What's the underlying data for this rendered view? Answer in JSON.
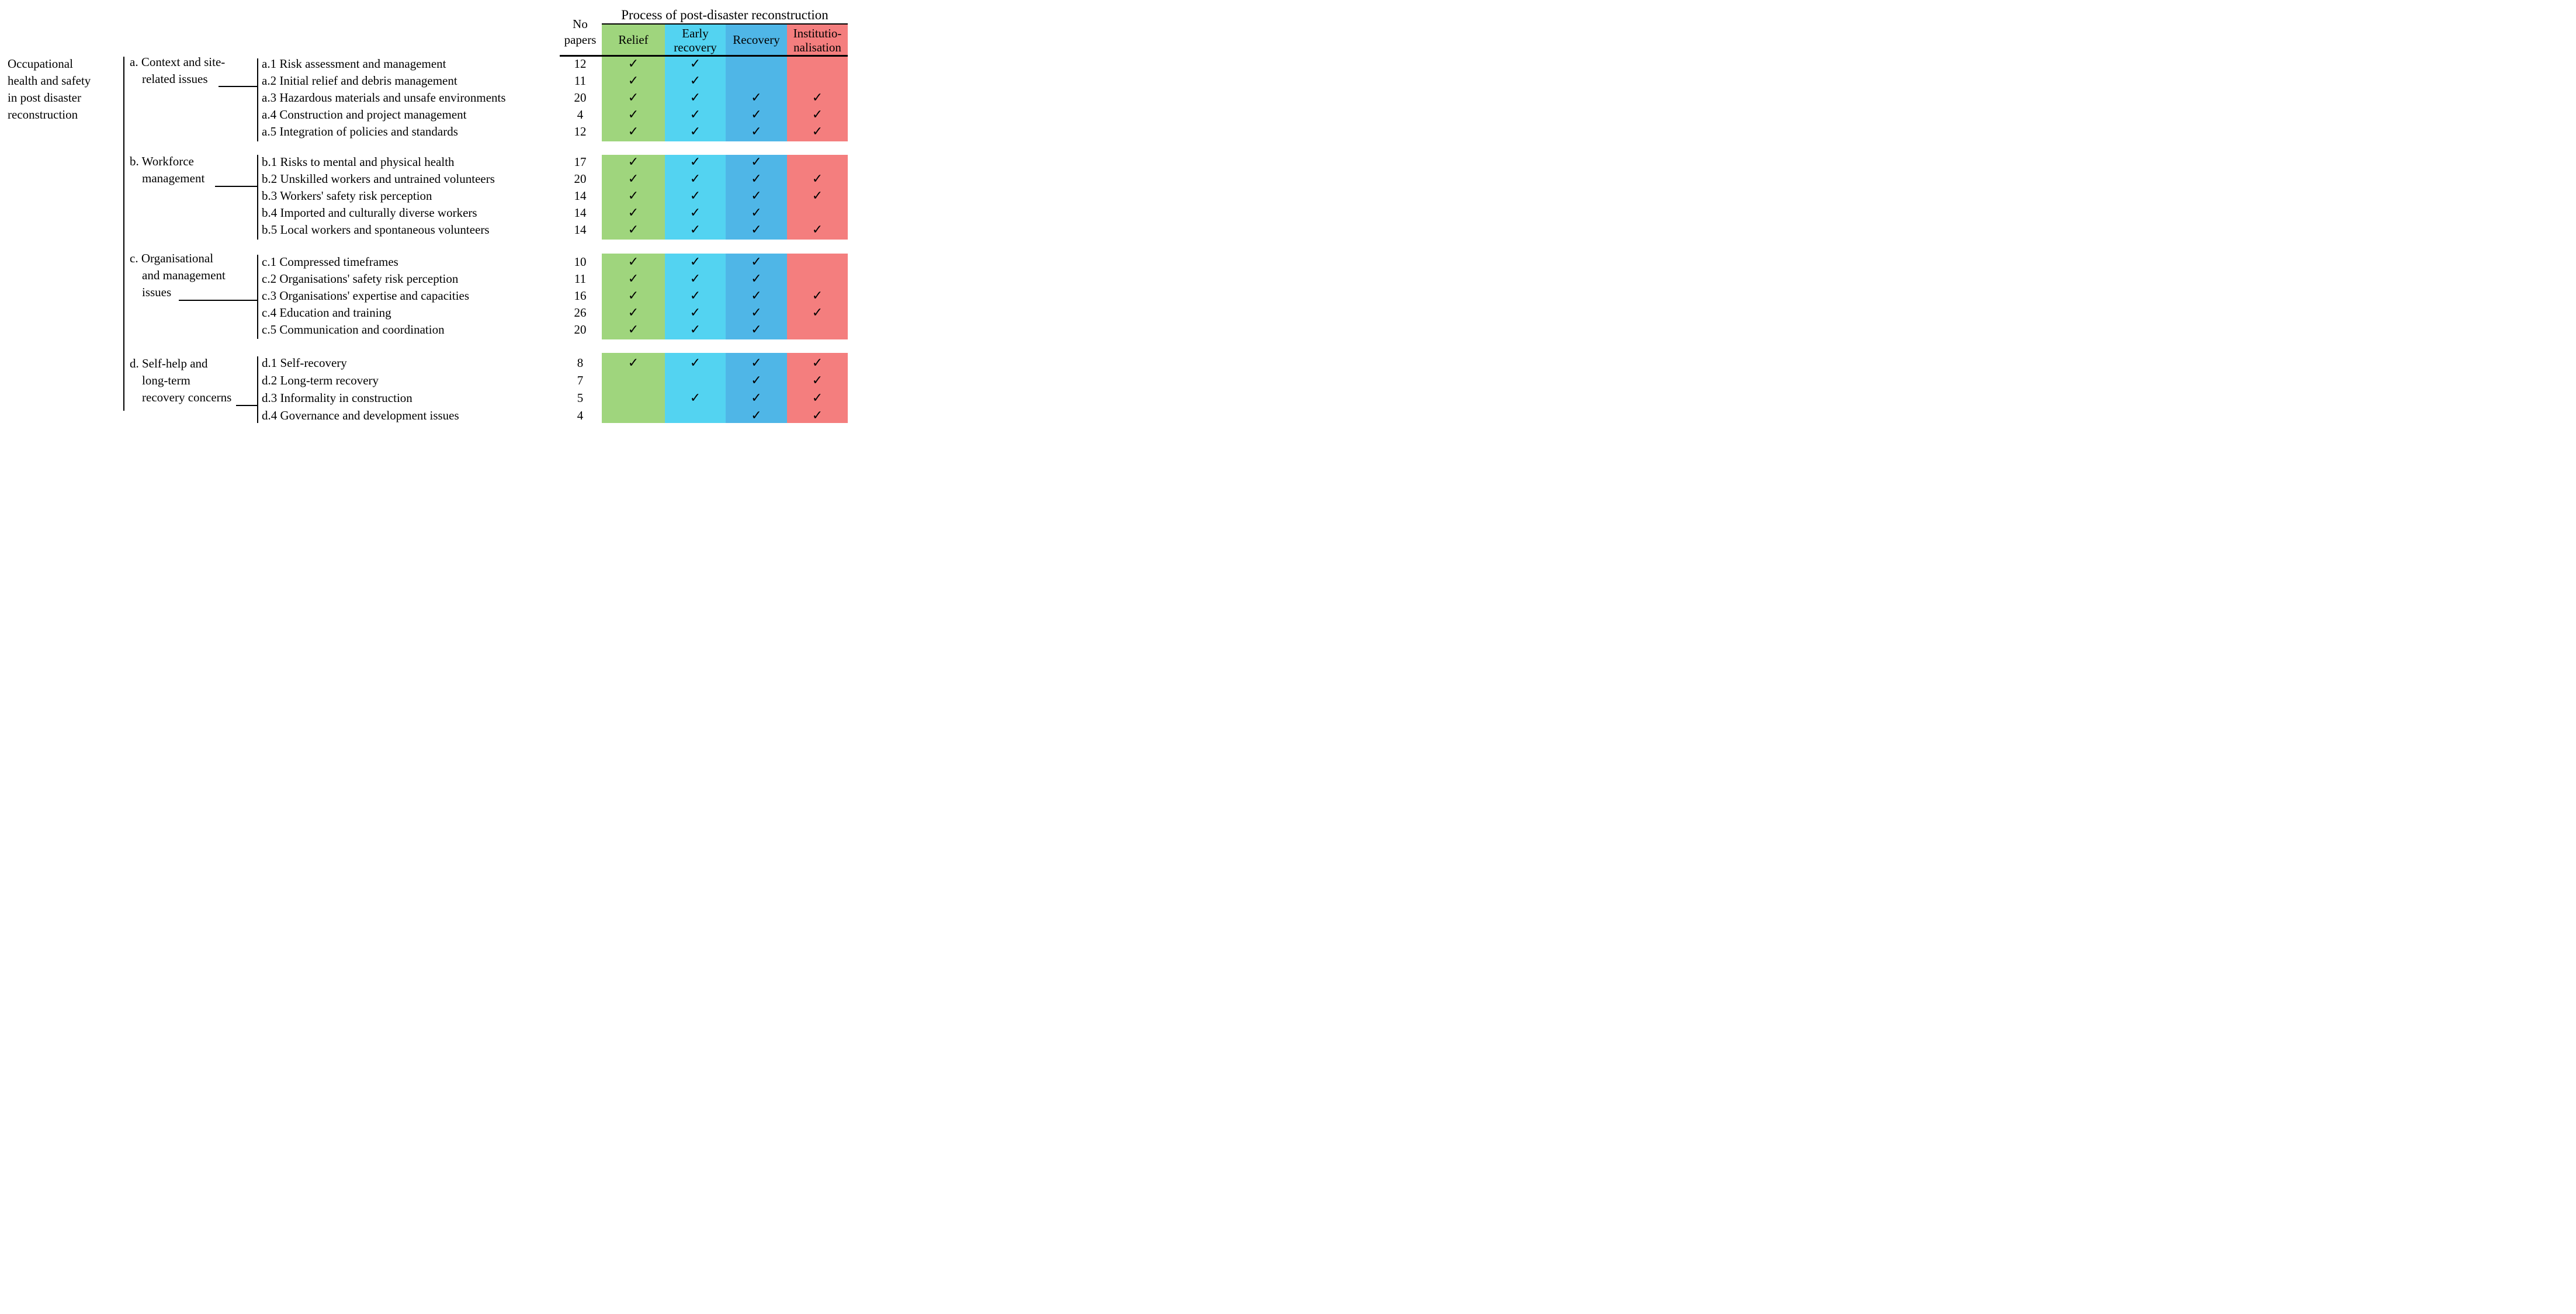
{
  "figure": {
    "root_label_lines": [
      "Occupational",
      "health and safety",
      "in post disaster",
      "reconstruction"
    ]
  },
  "header": {
    "process_title": "Process of post-disaster reconstruction",
    "no_papers_lines": [
      "No",
      "papers"
    ],
    "phases": [
      {
        "name": "relief",
        "label_lines": [
          "Relief"
        ],
        "color": "#9fd57d"
      },
      {
        "name": "early-recovery",
        "label_lines": [
          "Early",
          "recovery"
        ],
        "color": "#53d3f1"
      },
      {
        "name": "recovery",
        "label_lines": [
          "Recovery"
        ],
        "color": "#4fb6e7"
      },
      {
        "name": "institutionalisation",
        "label_lines": [
          "Institutio-",
          "nalisation"
        ],
        "color": "#f47e7e"
      }
    ]
  },
  "check_mark": "✓",
  "sections": [
    {
      "id": "a",
      "label_lines": [
        "a. Context and site-",
        "related issues"
      ],
      "rows": [
        {
          "label": "a.1 Risk assessment and management",
          "papers": "12",
          "checks": [
            true,
            true,
            false,
            false
          ]
        },
        {
          "label": "a.2 Initial relief and debris management",
          "papers": "11",
          "checks": [
            true,
            true,
            false,
            false
          ]
        },
        {
          "label": "a.3 Hazardous materials and unsafe environments",
          "papers": "20",
          "checks": [
            true,
            true,
            true,
            true
          ]
        },
        {
          "label": "a.4 Construction and project management",
          "papers": "4",
          "checks": [
            true,
            true,
            true,
            true
          ]
        },
        {
          "label": "a.5 Integration of policies and standards",
          "papers": "12",
          "checks": [
            true,
            true,
            true,
            true
          ]
        }
      ]
    },
    {
      "id": "b",
      "label_lines": [
        "b. Workforce",
        "management"
      ],
      "rows": [
        {
          "label": "b.1 Risks to mental and physical health",
          "papers": "17",
          "checks": [
            true,
            true,
            true,
            false
          ]
        },
        {
          "label": "b.2 Unskilled workers and untrained volunteers",
          "papers": "20",
          "checks": [
            true,
            true,
            true,
            true
          ]
        },
        {
          "label": "b.3 Workers' safety risk perception",
          "papers": "14",
          "checks": [
            true,
            true,
            true,
            true
          ]
        },
        {
          "label": "b.4 Imported and culturally diverse workers",
          "papers": "14",
          "checks": [
            true,
            true,
            true,
            false
          ]
        },
        {
          "label": "b.5 Local workers and spontaneous volunteers",
          "papers": "14",
          "checks": [
            true,
            true,
            true,
            true
          ]
        }
      ]
    },
    {
      "id": "c",
      "label_lines": [
        "c. Organisational",
        "and management",
        "issues"
      ],
      "rows": [
        {
          "label": "c.1 Compressed timeframes",
          "papers": "10",
          "checks": [
            true,
            true,
            true,
            false
          ]
        },
        {
          "label": "c.2 Organisations' safety risk perception",
          "papers": "11",
          "checks": [
            true,
            true,
            true,
            false
          ]
        },
        {
          "label": "c.3 Organisations' expertise and capacities",
          "papers": "16",
          "checks": [
            true,
            true,
            true,
            true
          ]
        },
        {
          "label": "c.4 Education and training",
          "papers": "26",
          "checks": [
            true,
            true,
            true,
            true
          ]
        },
        {
          "label": "c.5 Communication and coordination",
          "papers": "20",
          "checks": [
            true,
            true,
            true,
            false
          ]
        }
      ]
    },
    {
      "id": "d",
      "label_lines": [
        "d. Self-help and",
        "long-term",
        "recovery concerns"
      ],
      "rows": [
        {
          "label": "d.1 Self-recovery",
          "papers": "8",
          "checks": [
            true,
            true,
            true,
            true
          ]
        },
        {
          "label": "d.2 Long-term recovery",
          "papers": "7",
          "checks": [
            false,
            false,
            true,
            true
          ]
        },
        {
          "label": "d.3 Informality in construction",
          "papers": "5",
          "checks": [
            false,
            true,
            true,
            true
          ]
        },
        {
          "label": "d.4 Governance and development issues",
          "papers": "4",
          "checks": [
            false,
            false,
            true,
            true
          ]
        }
      ]
    }
  ]
}
